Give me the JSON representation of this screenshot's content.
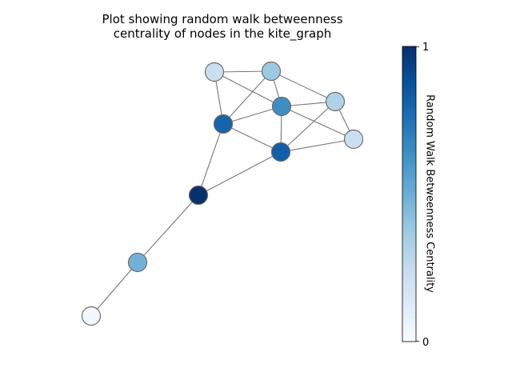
{
  "title": {
    "line1": "Plot showing random walk betweenness",
    "line2": "centrality of nodes in the kite_graph"
  },
  "colorbar": {
    "label": "Random Walk Betweenness Centrality",
    "min_label": "0",
    "max_label": "1",
    "min": 0,
    "max": 1,
    "colormap": [
      "#f7fbff",
      "#deebf7",
      "#c6dbef",
      "#9ecae1",
      "#6baed6",
      "#4292c6",
      "#2171b5",
      "#08519c",
      "#08306b"
    ]
  },
  "graph": {
    "name": "kite_graph",
    "node_border_color": "#6b6b6b",
    "edge_color": "#777777",
    "nodes": [
      {
        "id": "A",
        "value": 0.22
      },
      {
        "id": "B",
        "value": 0.38
      },
      {
        "id": "C",
        "value": 0.32
      },
      {
        "id": "D",
        "value": 0.22
      },
      {
        "id": "E",
        "value": 0.64
      },
      {
        "id": "F",
        "value": 0.8
      },
      {
        "id": "G",
        "value": 0.82
      },
      {
        "id": "H",
        "value": 1.0
      },
      {
        "id": "I",
        "value": 0.48
      },
      {
        "id": "J",
        "value": 0.02
      }
    ],
    "edges": [
      [
        "A",
        "B"
      ],
      [
        "A",
        "E"
      ],
      [
        "A",
        "F"
      ],
      [
        "B",
        "E"
      ],
      [
        "B",
        "F"
      ],
      [
        "B",
        "C"
      ],
      [
        "E",
        "C"
      ],
      [
        "E",
        "F"
      ],
      [
        "E",
        "G"
      ],
      [
        "C",
        "G"
      ],
      [
        "C",
        "D"
      ],
      [
        "D",
        "G"
      ],
      [
        "D",
        "E"
      ],
      [
        "F",
        "G"
      ],
      [
        "F",
        "H"
      ],
      [
        "G",
        "H"
      ],
      [
        "H",
        "I"
      ],
      [
        "I",
        "J"
      ]
    ]
  }
}
